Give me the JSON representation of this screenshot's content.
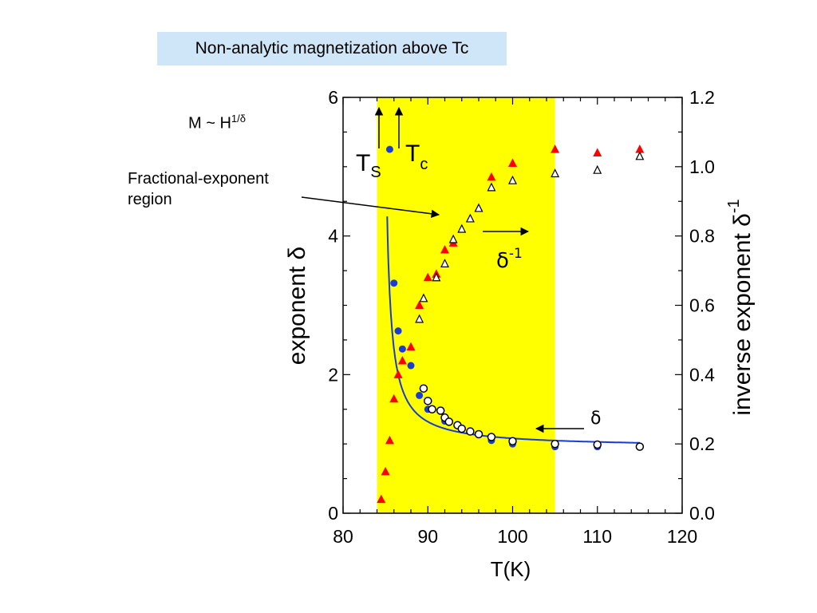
{
  "title_box": "Non-analytic magnetization above Tc",
  "annotations": {
    "scaling_law_text": "M ~ H",
    "scaling_law_sup": "1/δ",
    "region_line1": "Fractional-exponent",
    "region_line2": "region",
    "ts_main": "T",
    "ts_sub": "S",
    "tc_main": "T",
    "tc_sub": "c",
    "delta_inv_label": "δ",
    "delta_inv_sup": "-1",
    "delta_label": "δ"
  },
  "colors": {
    "region_fill": "#ffff00",
    "filled_triangle": "#ff0000",
    "filled_circle": "#1a3cd6",
    "fit_line": "#1a3cd6",
    "title_box_bg": "#cfe6f8"
  },
  "chart_data": {
    "type": "scatter",
    "xlabel": "T(K)",
    "ylabel": "exponent δ",
    "y2label": "inverse exponent δ",
    "y2label_sup": "-1",
    "xlim": [
      80,
      120
    ],
    "ylim": [
      0,
      6
    ],
    "y2lim": [
      0.0,
      1.2
    ],
    "xticks": [
      "80",
      "90",
      "100",
      "110",
      "120"
    ],
    "yticks": [
      "0",
      "2",
      "4",
      "6"
    ],
    "y2ticks": [
      "0.0",
      "0.2",
      "0.4",
      "0.6",
      "0.8",
      "1.0",
      "1.2"
    ],
    "shaded_region": [
      84,
      105
    ],
    "Ts": 84,
    "Tc": 85.2,
    "series": [
      {
        "axis": "left",
        "marker": "filled-circle",
        "x": [
          85.5,
          86.0,
          86.5,
          87.0,
          88.0,
          89.0,
          90.0,
          92.0,
          97.5,
          100.0,
          105.0,
          110.0
        ],
        "y": [
          5.25,
          3.32,
          2.63,
          2.37,
          2.13,
          1.7,
          1.5,
          1.33,
          1.05,
          1.0,
          0.96,
          0.96
        ]
      },
      {
        "axis": "left",
        "marker": "open-circle",
        "x": [
          89.5,
          90.0,
          90.5,
          91.5,
          92.0,
          92.5,
          93.5,
          94.0,
          95.0,
          96.0,
          97.5,
          100.0,
          105.0,
          110.0,
          115.0
        ],
        "y": [
          1.8,
          1.62,
          1.5,
          1.48,
          1.38,
          1.32,
          1.27,
          1.22,
          1.18,
          1.14,
          1.1,
          1.04,
          1.0,
          0.99,
          0.96
        ]
      },
      {
        "axis": "right",
        "marker": "filled-triangle",
        "x": [
          84.5,
          85.0,
          85.5,
          86.0,
          86.5,
          87.0,
          88.0,
          89.0,
          90.0,
          91.0,
          92.0,
          93.0,
          95.0,
          96.0,
          97.5,
          100.0,
          105.0,
          110.0,
          115.0
        ],
        "y": [
          0.04,
          0.12,
          0.21,
          0.33,
          0.4,
          0.44,
          0.48,
          0.6,
          0.68,
          0.69,
          0.76,
          0.78,
          0.85,
          0.88,
          0.97,
          1.01,
          1.05,
          1.04,
          1.05
        ]
      },
      {
        "axis": "right",
        "marker": "open-triangle",
        "x": [
          89.0,
          89.5,
          91.0,
          92.0,
          93.0,
          94.0,
          95.0,
          96.0,
          97.5,
          100.0,
          105.0,
          110.0,
          115.0
        ],
        "y": [
          0.56,
          0.62,
          0.68,
          0.72,
          0.79,
          0.82,
          0.85,
          0.88,
          0.94,
          0.96,
          0.98,
          0.99,
          1.03
        ]
      }
    ]
  }
}
